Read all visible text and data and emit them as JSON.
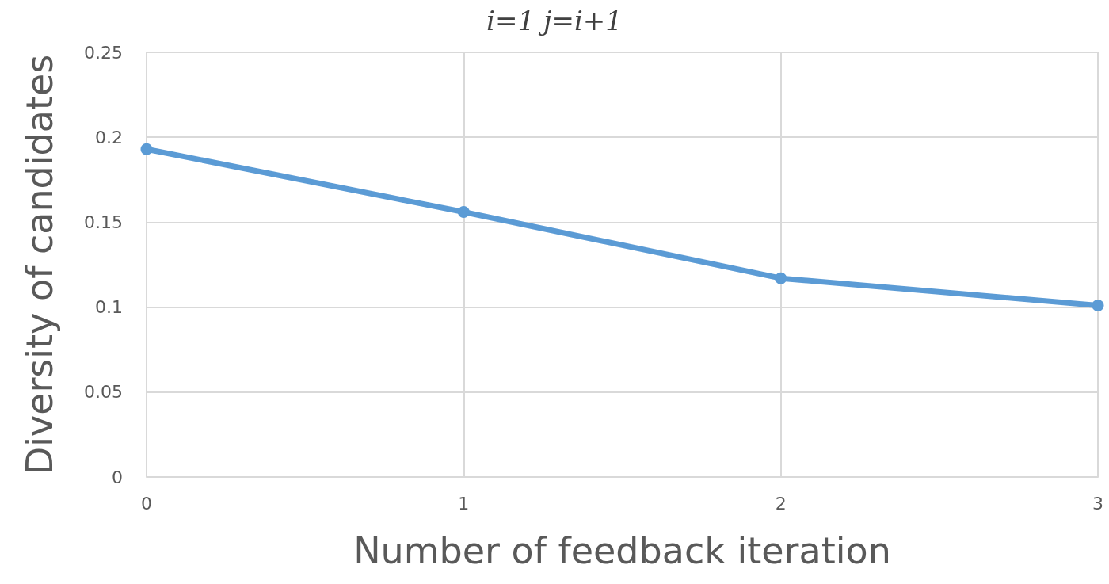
{
  "chart_data": {
    "type": "line",
    "title": "i=1 j=i+1",
    "xlabel": "Number of feedback iteration",
    "ylabel": "Diversity of candidates",
    "x": [
      0,
      1,
      2,
      3
    ],
    "series": [
      {
        "color": "#5b9bd5",
        "values": [
          0.193,
          0.156,
          0.117,
          0.101
        ]
      }
    ],
    "xlim": [
      0,
      3
    ],
    "xticks": [
      0,
      1,
      2,
      3
    ],
    "ylim": [
      0,
      0.25
    ],
    "yticks": [
      0,
      0.05,
      0.1,
      0.15,
      0.2,
      0.25
    ],
    "grid": true,
    "marker": "circle",
    "line_style": "solid"
  }
}
